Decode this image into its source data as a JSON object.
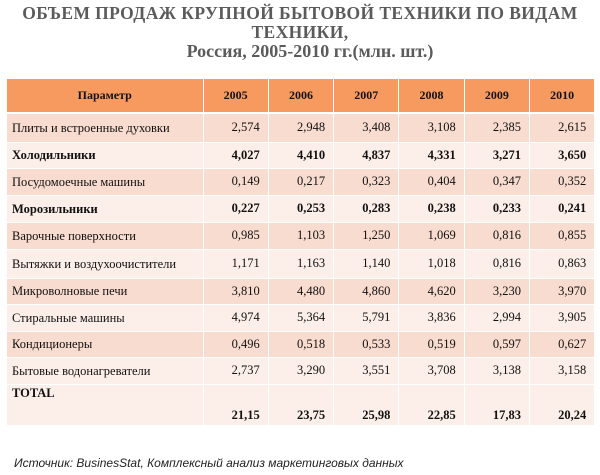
{
  "title": {
    "line1": "ОБЪЕМ ПРОДАЖ КРУПНОЙ БЫТОВОЙ ТЕХНИКИ ПО ВИДАМ",
    "line2": "ТЕХНИКИ,",
    "line3": "Россия, 2005-2010 гг.(млн. шт.)"
  },
  "table": {
    "header": [
      "Параметр",
      "2005",
      "2006",
      "2007",
      "2008",
      "2009",
      "2010"
    ],
    "rows": [
      {
        "name": "Плиты и встроенные духовки",
        "bold": false,
        "values": [
          "2,574",
          "2,948",
          "3,408",
          "3,108",
          "2,385",
          "2,615"
        ]
      },
      {
        "name": "Холодильники",
        "bold": true,
        "values": [
          "4,027",
          "4,410",
          "4,837",
          "4,331",
          "3,271",
          "3,650"
        ]
      },
      {
        "name": "Посудомоечные машины",
        "bold": false,
        "values": [
          "0,149",
          "0,217",
          "0,323",
          "0,404",
          "0,347",
          "0,352"
        ]
      },
      {
        "name": "Морозильники",
        "bold": true,
        "values": [
          "0,227",
          "0,253",
          "0,283",
          "0,238",
          "0,233",
          "0,241"
        ]
      },
      {
        "name": "Варочные поверхности",
        "bold": false,
        "values": [
          "0,985",
          "1,103",
          "1,250",
          "1,069",
          "0,816",
          "0,855"
        ]
      },
      {
        "name": "Вытяжки и воздухоочистители",
        "bold": false,
        "values": [
          "1,171",
          "1,163",
          "1,140",
          "1,018",
          "0,816",
          "0,863"
        ]
      },
      {
        "name": "Микроволновые печи",
        "bold": false,
        "values": [
          "3,810",
          "4,480",
          "4,860",
          "4,620",
          "3,230",
          "3,970"
        ]
      },
      {
        "name": "Стиральные машины",
        "bold": false,
        "values": [
          "4,974",
          "5,364",
          "5,791",
          "3,836",
          "2,994",
          "3,905"
        ]
      },
      {
        "name": "Кондиционеры",
        "bold": false,
        "values": [
          "0,496",
          "0,518",
          "0,533",
          "0,519",
          "0,597",
          "0,627"
        ]
      },
      {
        "name": "Бытовые водонагреватели",
        "bold": false,
        "values": [
          "2,737",
          "3,290",
          "3,551",
          "3,708",
          "3,138",
          "3,158"
        ]
      }
    ],
    "total": {
      "name": "TOTAL",
      "values": [
        "21,15",
        "23,75",
        "25,98",
        "22,85",
        "17,83",
        "20,24"
      ]
    }
  },
  "source": "Источник: BusinesStat, Комплексный анализ маркетинговых данных",
  "colors": {
    "header": "#f79a60",
    "row_dark": "#f9dcd0",
    "row_light": "#fcefe9",
    "title": "#5b5b5b"
  }
}
